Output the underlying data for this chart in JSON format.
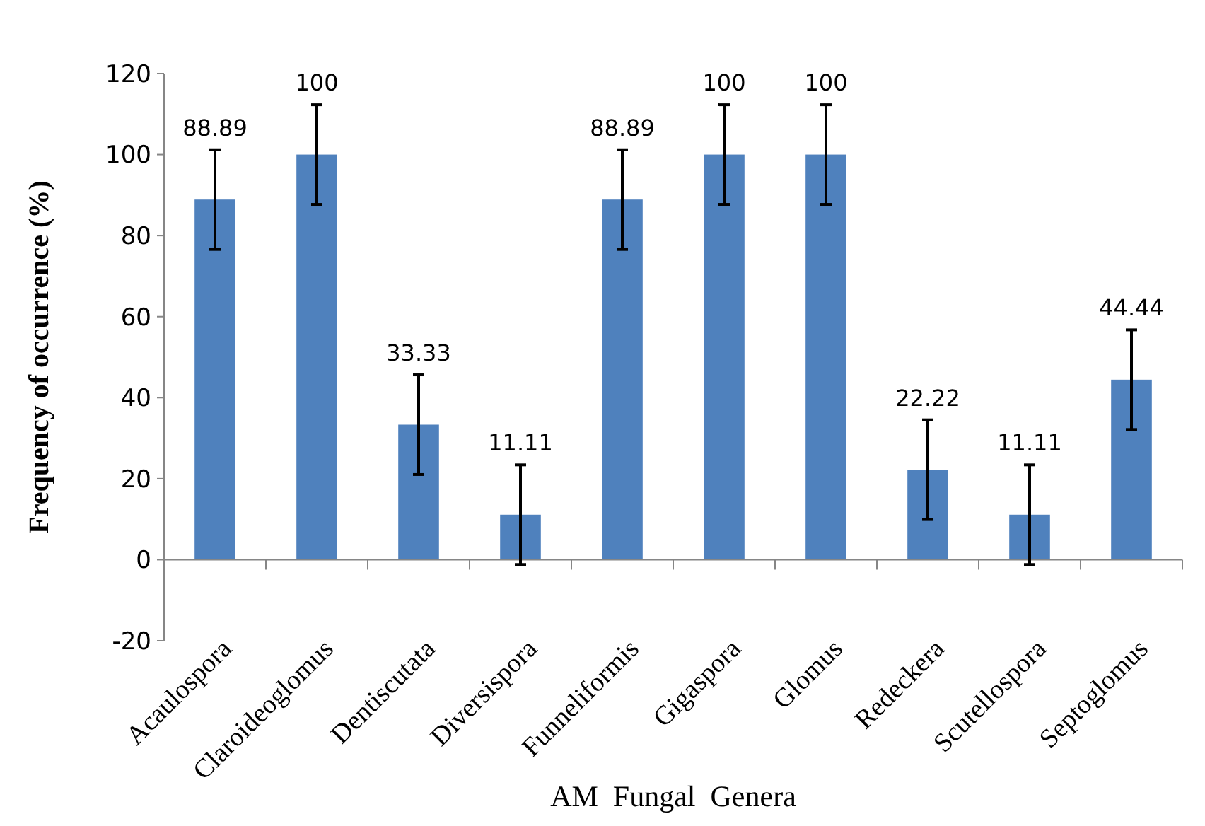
{
  "chart_data": {
    "type": "bar",
    "xlabel": "AM  Fungal  Genera",
    "ylabel": "Frequency of occurrence (%)",
    "categories": [
      "Acaulospora",
      "Claroideoglomus",
      "Dentiscutata",
      "Diversispora",
      "Funneliformis",
      "Gigaspora",
      "Glomus",
      "Redeckera",
      "Scutellospora",
      "Septoglomus"
    ],
    "values": [
      88.89,
      100,
      33.33,
      11.11,
      88.89,
      100,
      100,
      22.22,
      11.11,
      44.44
    ],
    "errors": [
      12.3,
      12.3,
      12.3,
      12.3,
      12.3,
      12.3,
      12.3,
      12.3,
      12.3,
      12.3
    ],
    "color": "#4f81bd",
    "data_labels": true,
    "ylim": [
      -20,
      120
    ],
    "yticks": [
      -20,
      0,
      20,
      40,
      60,
      80,
      100,
      120
    ]
  }
}
